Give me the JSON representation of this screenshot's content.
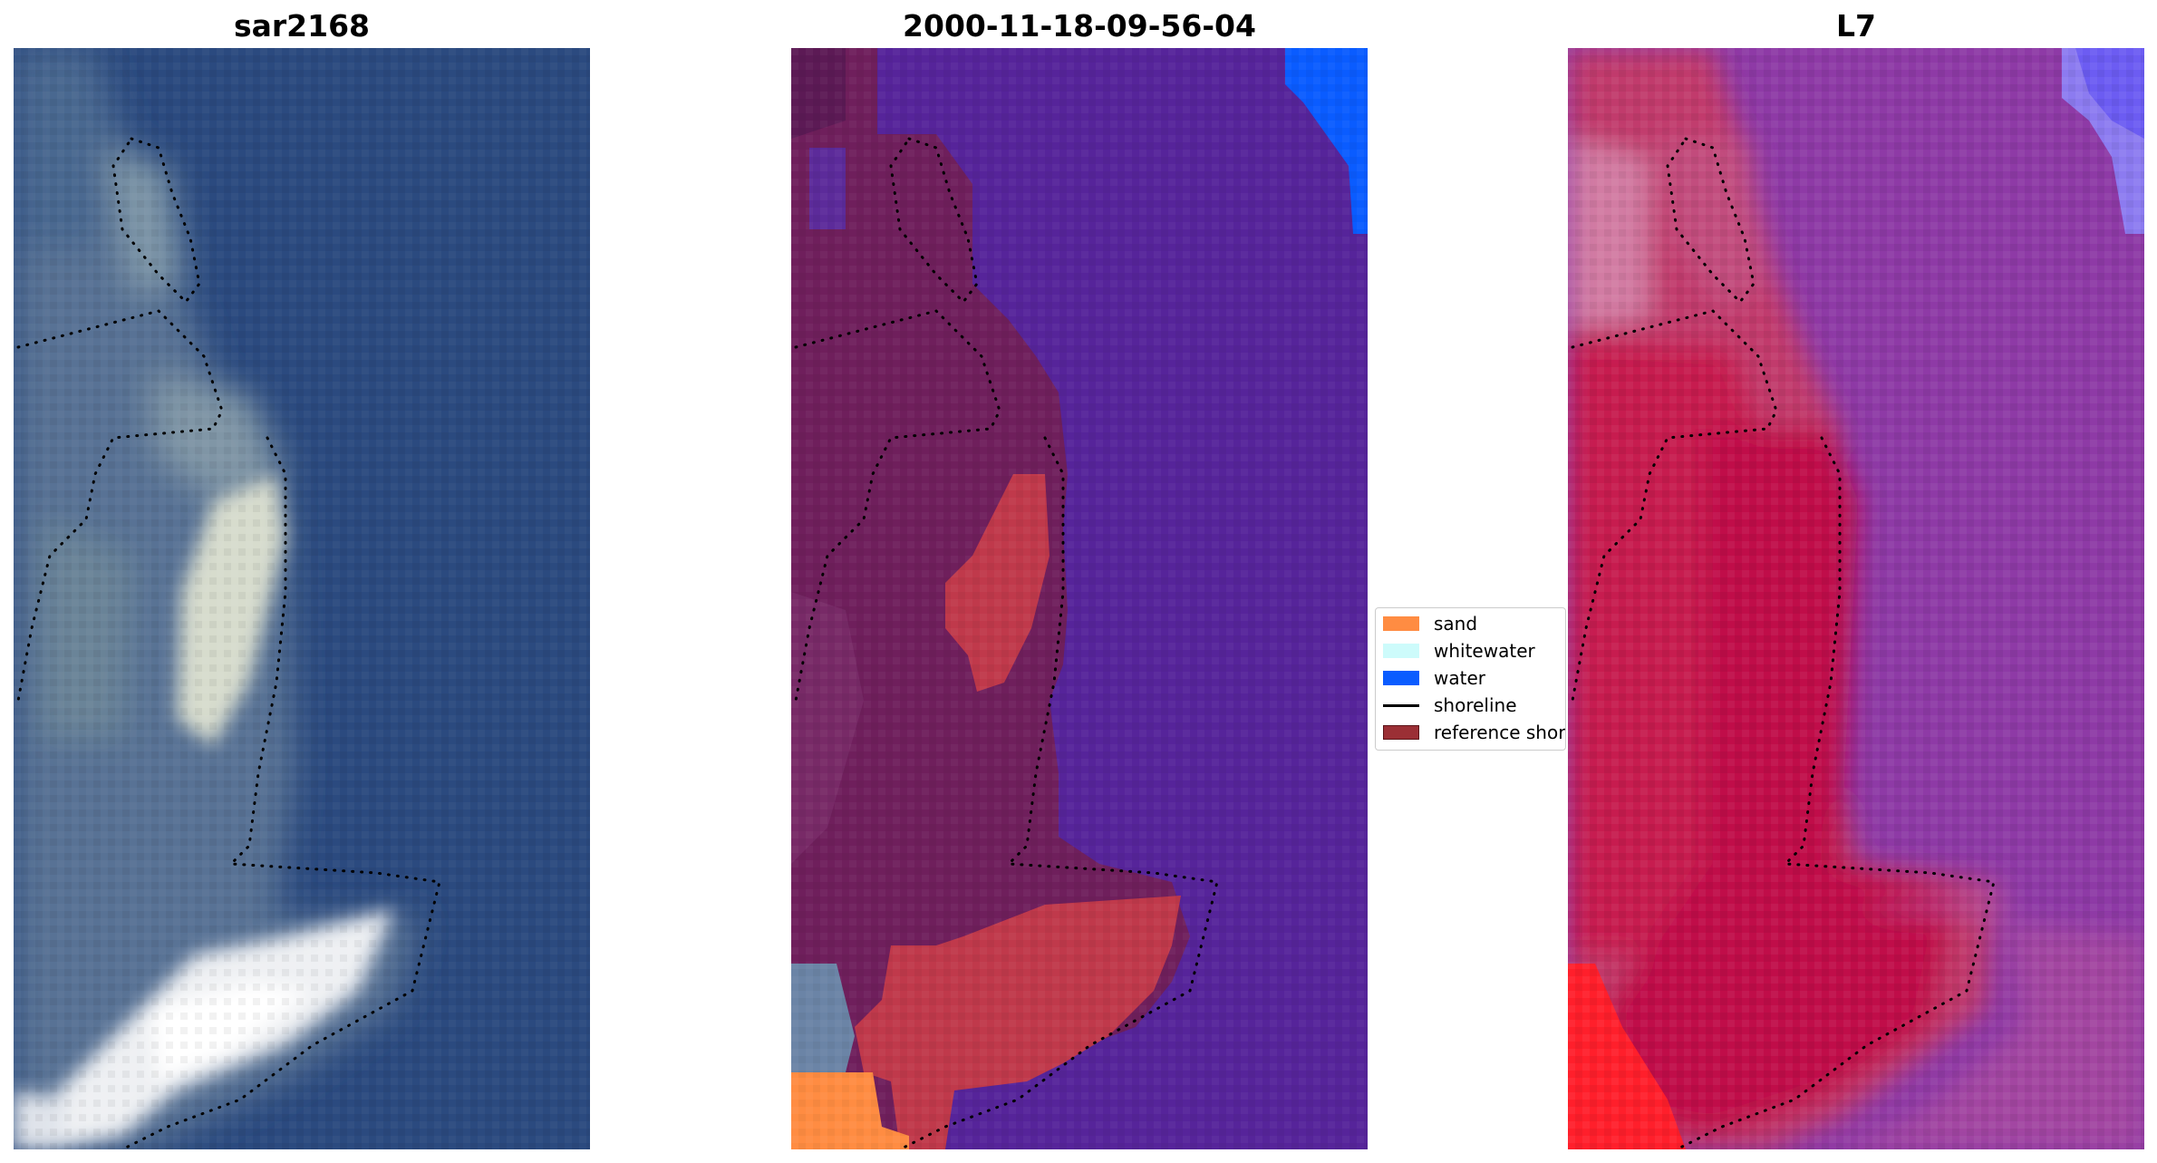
{
  "panels": [
    {
      "title": "sar2168"
    },
    {
      "title": "2000-11-18-09-56-04"
    },
    {
      "title": "L7"
    }
  ],
  "legend": {
    "items": [
      {
        "label": "sand",
        "kind": "patch",
        "color": "#ff8c42"
      },
      {
        "label": "whitewater",
        "kind": "patch",
        "color": "#cdfbfb"
      },
      {
        "label": "water",
        "kind": "patch",
        "color": "#0a5cff"
      },
      {
        "label": "shoreline",
        "kind": "line",
        "color": "#000000"
      },
      {
        "label": "reference shoreline",
        "kind": "patch",
        "color": "#9b2f35",
        "edge": "#5a1418"
      }
    ]
  },
  "colors": {
    "rgb_water": "#2b4a7f",
    "rgb_bright": "#f4f4f8",
    "class_water": "#56249a",
    "class_land": "#6f1f5c",
    "class_sand": "#c0394b",
    "ndwi_land": "#c8174a",
    "ndwi_water": "#8e3aa6",
    "shoreline_dots": "#000000"
  }
}
